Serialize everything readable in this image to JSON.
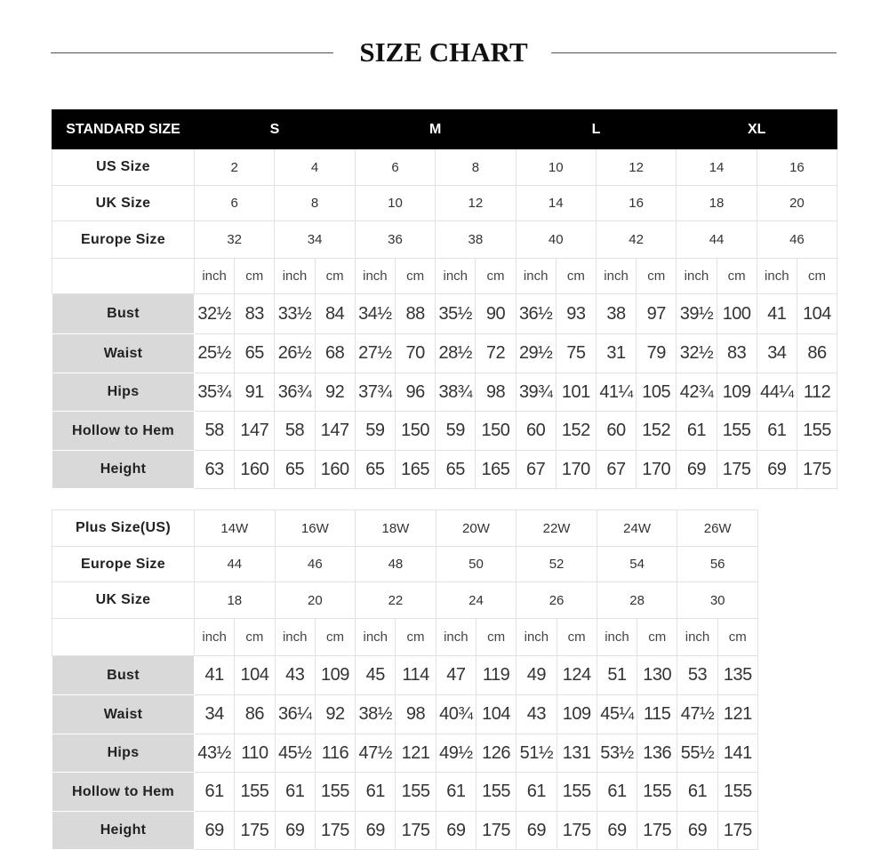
{
  "title": "SIZE CHART",
  "standard": {
    "header": {
      "label": "STANDARD SIZE",
      "groups": [
        "S",
        "M",
        "L",
        "XL"
      ]
    },
    "size_rows": [
      {
        "label": "US Size",
        "values": [
          "2",
          "4",
          "6",
          "8",
          "10",
          "12",
          "14",
          "16"
        ]
      },
      {
        "label": "UK Size",
        "values": [
          "6",
          "8",
          "10",
          "12",
          "14",
          "16",
          "18",
          "20"
        ]
      },
      {
        "label": "Europe Size",
        "values": [
          "32",
          "34",
          "36",
          "38",
          "40",
          "42",
          "44",
          "46"
        ]
      }
    ],
    "units": [
      "inch",
      "cm"
    ],
    "measure_rows": [
      {
        "label": "Bust",
        "values": [
          "32½",
          "83",
          "33½",
          "84",
          "34½",
          "88",
          "35½",
          "90",
          "36½",
          "93",
          "38",
          "97",
          "39½",
          "100",
          "41",
          "104"
        ]
      },
      {
        "label": "Waist",
        "values": [
          "25½",
          "65",
          "26½",
          "68",
          "27½",
          "70",
          "28½",
          "72",
          "29½",
          "75",
          "31",
          "79",
          "32½",
          "83",
          "34",
          "86"
        ]
      },
      {
        "label": "Hips",
        "values": [
          "35¾",
          "91",
          "36¾",
          "92",
          "37¾",
          "96",
          "38¾",
          "98",
          "39¾",
          "101",
          "41¼",
          "105",
          "42¾",
          "109",
          "44¼",
          "112"
        ]
      },
      {
        "label": "Hollow to Hem",
        "values": [
          "58",
          "147",
          "58",
          "147",
          "59",
          "150",
          "59",
          "150",
          "60",
          "152",
          "60",
          "152",
          "61",
          "155",
          "61",
          "155"
        ]
      },
      {
        "label": "Height",
        "values": [
          "63",
          "160",
          "65",
          "160",
          "65",
          "165",
          "65",
          "165",
          "67",
          "170",
          "67",
          "170",
          "69",
          "175",
          "69",
          "175"
        ]
      }
    ]
  },
  "plus": {
    "size_rows": [
      {
        "label": "Plus Size(US)",
        "values": [
          "14W",
          "16W",
          "18W",
          "20W",
          "22W",
          "24W",
          "26W"
        ]
      },
      {
        "label": "Europe Size",
        "values": [
          "44",
          "46",
          "48",
          "50",
          "52",
          "54",
          "56"
        ]
      },
      {
        "label": "UK Size",
        "values": [
          "18",
          "20",
          "22",
          "24",
          "26",
          "28",
          "30"
        ]
      }
    ],
    "units": [
      "inch",
      "cm"
    ],
    "measure_rows": [
      {
        "label": "Bust",
        "values": [
          "41",
          "104",
          "43",
          "109",
          "45",
          "114",
          "47",
          "119",
          "49",
          "124",
          "51",
          "130",
          "53",
          "135"
        ]
      },
      {
        "label": "Waist",
        "values": [
          "34",
          "86",
          "36¼",
          "92",
          "38½",
          "98",
          "40¾",
          "104",
          "43",
          "109",
          "45¼",
          "115",
          "47½",
          "121"
        ]
      },
      {
        "label": "Hips",
        "values": [
          "43½",
          "110",
          "45½",
          "116",
          "47½",
          "121",
          "49½",
          "126",
          "51½",
          "131",
          "53½",
          "136",
          "55½",
          "141"
        ]
      },
      {
        "label": "Hollow to Hem",
        "values": [
          "61",
          "155",
          "61",
          "155",
          "61",
          "155",
          "61",
          "155",
          "61",
          "155",
          "61",
          "155",
          "61",
          "155"
        ]
      },
      {
        "label": "Height",
        "values": [
          "69",
          "175",
          "69",
          "175",
          "69",
          "175",
          "69",
          "175",
          "69",
          "175",
          "69",
          "175",
          "69",
          "175"
        ]
      }
    ]
  }
}
